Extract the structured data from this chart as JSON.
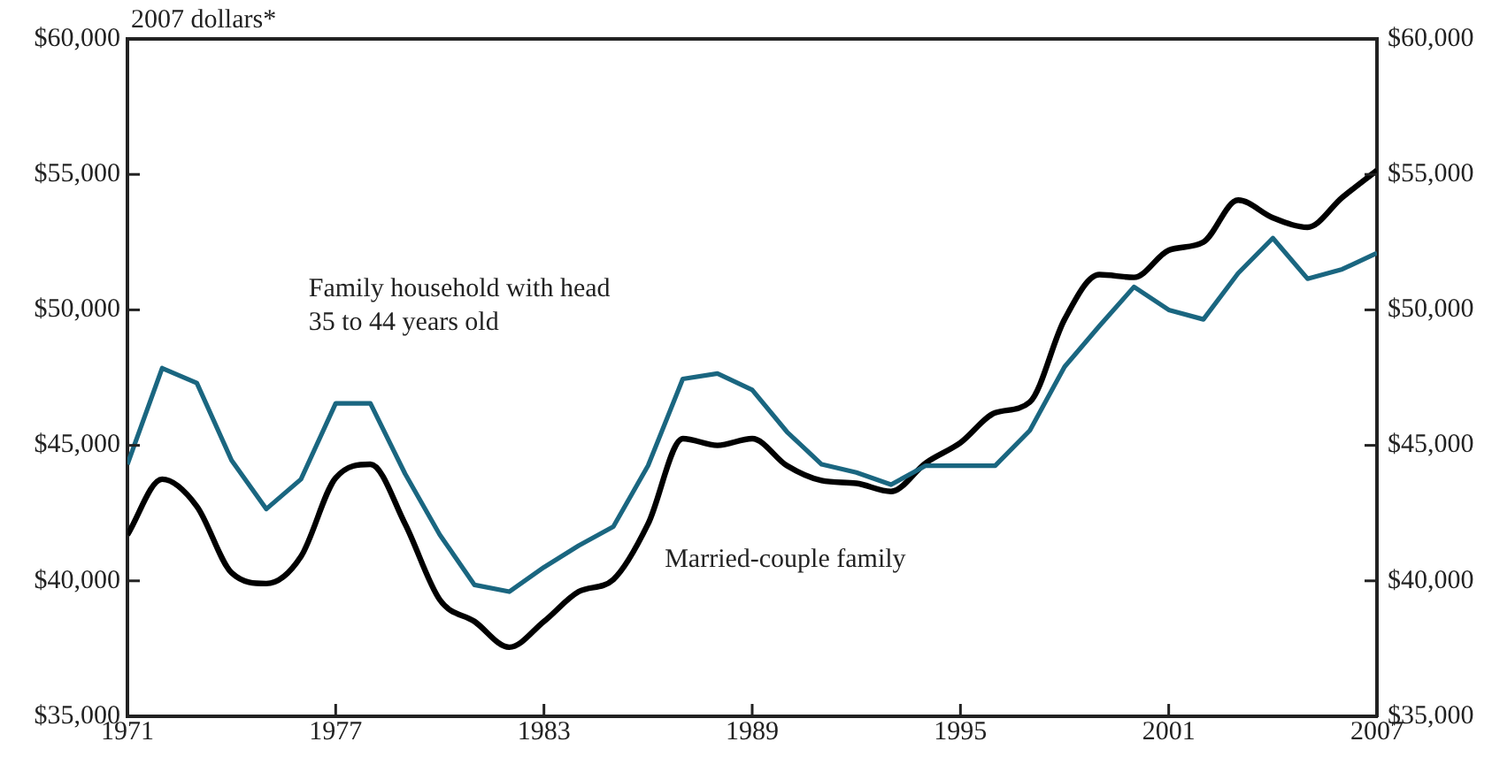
{
  "chart_data": {
    "type": "line",
    "ylabel": "2007 dollars*",
    "x": [
      1971,
      1972,
      1973,
      1974,
      1975,
      1976,
      1977,
      1978,
      1979,
      1980,
      1981,
      1982,
      1983,
      1984,
      1985,
      1986,
      1987,
      1988,
      1989,
      1990,
      1991,
      1992,
      1993,
      1994,
      1995,
      1996,
      1997,
      1998,
      1999,
      2000,
      2001,
      2002,
      2003,
      2004,
      2005,
      2006,
      2007
    ],
    "series": [
      {
        "name": "Family household with head 35 to 44 years old",
        "color": "#1a6680",
        "values": [
          44300,
          47850,
          47300,
          44450,
          42650,
          43750,
          46550,
          46550,
          43950,
          41700,
          39850,
          39600,
          40500,
          41300,
          42000,
          44250,
          47450,
          47650,
          47050,
          45500,
          44300,
          44000,
          43550,
          44250,
          44250,
          44250,
          45550,
          47900,
          49400,
          50850,
          50000,
          49650,
          51350,
          52650,
          51150,
          51500,
          52100
        ]
      },
      {
        "name": "Married-couple family",
        "color": "#000000",
        "values": [
          41700,
          43750,
          42750,
          40300,
          39900,
          40900,
          43800,
          44300,
          42100,
          39300,
          38500,
          37550,
          38500,
          39600,
          40050,
          42100,
          45250,
          45000,
          45250,
          44250,
          43700,
          43600,
          43300,
          44350,
          45100,
          46200,
          46600,
          49650,
          51300,
          51200,
          52200,
          52500,
          54050,
          53400,
          53050,
          54150,
          55150
        ]
      }
    ],
    "xlim": [
      1971,
      2007
    ],
    "xticks": [
      1971,
      1977,
      1983,
      1989,
      1995,
      2001,
      2007
    ],
    "ylim": [
      35000,
      60000
    ],
    "yticks": [
      {
        "value": 35000,
        "label": "$35,000"
      },
      {
        "value": 40000,
        "label": "$40,000"
      },
      {
        "value": 45000,
        "label": "$45,000"
      },
      {
        "value": 50000,
        "label": "$50,000"
      },
      {
        "value": 55000,
        "label": "$55,000"
      },
      {
        "value": 60000,
        "label": "$60,000"
      }
    ],
    "y2lim": [
      35000,
      60000
    ],
    "y2ticks": [
      {
        "value": 35000,
        "label": "$35,000"
      },
      {
        "value": 40000,
        "label": "$40,000"
      },
      {
        "value": 45000,
        "label": "$45,000"
      },
      {
        "value": 50000,
        "label": "$50,000"
      },
      {
        "value": 55000,
        "label": "$55,000"
      },
      {
        "value": 60000,
        "label": "$60,000"
      }
    ],
    "grid": false,
    "legend": false,
    "marker": "none",
    "line_style": "solid"
  }
}
